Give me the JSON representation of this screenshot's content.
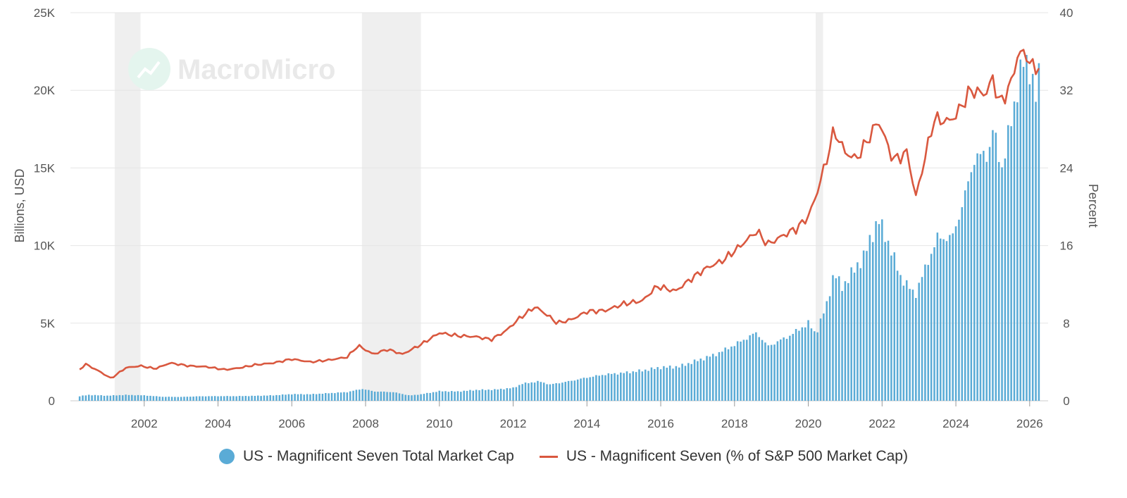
{
  "watermark": "MacroMicro",
  "colors": {
    "bar": "#5aabd6",
    "line": "#d9583f",
    "recession": "#efefef",
    "grid": "#e6e6e6",
    "axis_text": "#555555"
  },
  "legend": {
    "bar_label": "US - Magnificent Seven Total Market Cap",
    "line_label": "US - Magnificent Seven (% of S&P 500 Market Cap)"
  },
  "chart_data": {
    "type": "bar",
    "title": "",
    "x_ticks": [
      "2002",
      "2004",
      "2006",
      "2008",
      "2010",
      "2012",
      "2014",
      "2016",
      "2018",
      "2020",
      "2022",
      "2024",
      "2026"
    ],
    "x_range": [
      2000.0,
      2026.5
    ],
    "y_left": {
      "label": "Billions, USD",
      "ticks": [
        "0",
        "5K",
        "10K",
        "15K",
        "20K",
        "25K"
      ],
      "range": [
        0,
        25000
      ]
    },
    "y_right": {
      "label": "Percent",
      "ticks": [
        "0",
        "8",
        "16",
        "24",
        "32",
        "40"
      ],
      "range": [
        0,
        40
      ]
    },
    "recession_bands": [
      [
        2001.2,
        2001.9
      ],
      [
        2007.9,
        2009.5
      ],
      [
        2020.2,
        2020.4
      ]
    ],
    "grid": true,
    "legend_position": "bottom",
    "series": [
      {
        "name": "US - Magnificent Seven Total Market Cap",
        "type": "bar",
        "axis": "left",
        "points": [
          [
            2000.25,
            300
          ],
          [
            2000.5,
            380
          ],
          [
            2001.0,
            330
          ],
          [
            2001.5,
            380
          ],
          [
            2002.0,
            350
          ],
          [
            2002.5,
            260
          ],
          [
            2003.0,
            250
          ],
          [
            2003.5,
            290
          ],
          [
            2004.0,
            300
          ],
          [
            2004.5,
            300
          ],
          [
            2005.0,
            320
          ],
          [
            2005.5,
            350
          ],
          [
            2006.0,
            430
          ],
          [
            2006.5,
            420
          ],
          [
            2007.0,
            490
          ],
          [
            2007.5,
            560
          ],
          [
            2007.9,
            770
          ],
          [
            2008.25,
            600
          ],
          [
            2008.75,
            560
          ],
          [
            2009.2,
            340
          ],
          [
            2009.5,
            420
          ],
          [
            2010.0,
            620
          ],
          [
            2010.5,
            600
          ],
          [
            2011.0,
            700
          ],
          [
            2011.5,
            720
          ],
          [
            2012.0,
            830
          ],
          [
            2012.25,
            1100
          ],
          [
            2012.7,
            1250
          ],
          [
            2013.0,
            1050
          ],
          [
            2013.5,
            1250
          ],
          [
            2014.0,
            1500
          ],
          [
            2014.5,
            1700
          ],
          [
            2015.0,
            1800
          ],
          [
            2015.5,
            1950
          ],
          [
            2016.0,
            2150
          ],
          [
            2016.5,
            2200
          ],
          [
            2017.0,
            2600
          ],
          [
            2017.5,
            3000
          ],
          [
            2018.0,
            3600
          ],
          [
            2018.6,
            4400
          ],
          [
            2018.9,
            3500
          ],
          [
            2019.5,
            4200
          ],
          [
            2020.0,
            5000
          ],
          [
            2020.2,
            4300
          ],
          [
            2020.5,
            6200
          ],
          [
            2020.7,
            8300
          ],
          [
            2020.9,
            7300
          ],
          [
            2021.0,
            7600
          ],
          [
            2021.5,
            9300
          ],
          [
            2021.9,
            11700
          ],
          [
            2022.2,
            10000
          ],
          [
            2022.5,
            8000
          ],
          [
            2022.9,
            6800
          ],
          [
            2023.0,
            7500
          ],
          [
            2023.5,
            10500
          ],
          [
            2023.9,
            10500
          ],
          [
            2024.2,
            12800
          ],
          [
            2024.5,
            15600
          ],
          [
            2024.9,
            16000
          ],
          [
            2025.0,
            17500
          ],
          [
            2025.25,
            15000
          ],
          [
            2025.5,
            18000
          ],
          [
            2025.8,
            21800
          ],
          [
            2026.0,
            21500
          ],
          [
            2026.2,
            19200
          ],
          [
            2026.3,
            22300
          ]
        ]
      },
      {
        "name": "US - Magnificent Seven (% of S&P 500 Market Cap)",
        "type": "line",
        "axis": "right",
        "points": [
          [
            2000.25,
            3.2
          ],
          [
            2000.4,
            3.8
          ],
          [
            2000.8,
            3.0
          ],
          [
            2001.1,
            2.3
          ],
          [
            2001.5,
            3.4
          ],
          [
            2001.9,
            3.6
          ],
          [
            2002.3,
            3.3
          ],
          [
            2002.7,
            3.9
          ],
          [
            2003.2,
            3.6
          ],
          [
            2003.7,
            3.5
          ],
          [
            2004.2,
            3.2
          ],
          [
            2004.6,
            3.4
          ],
          [
            2005.0,
            3.7
          ],
          [
            2005.5,
            3.9
          ],
          [
            2006.0,
            4.3
          ],
          [
            2006.5,
            4.0
          ],
          [
            2007.0,
            4.2
          ],
          [
            2007.5,
            4.5
          ],
          [
            2007.8,
            5.7
          ],
          [
            2008.2,
            4.8
          ],
          [
            2008.6,
            5.3
          ],
          [
            2009.0,
            4.8
          ],
          [
            2009.5,
            5.8
          ],
          [
            2010.0,
            7.0
          ],
          [
            2010.5,
            6.7
          ],
          [
            2011.0,
            6.6
          ],
          [
            2011.4,
            6.3
          ],
          [
            2011.8,
            7.2
          ],
          [
            2012.2,
            8.6
          ],
          [
            2012.6,
            9.7
          ],
          [
            2012.9,
            8.9
          ],
          [
            2013.2,
            8.0
          ],
          [
            2013.6,
            8.4
          ],
          [
            2014.0,
            9.2
          ],
          [
            2014.5,
            9.3
          ],
          [
            2015.0,
            10.0
          ],
          [
            2015.5,
            10.3
          ],
          [
            2015.9,
            11.8
          ],
          [
            2016.4,
            11.3
          ],
          [
            2016.8,
            12.5
          ],
          [
            2017.2,
            13.6
          ],
          [
            2017.7,
            14.5
          ],
          [
            2018.2,
            16.1
          ],
          [
            2018.6,
            17.5
          ],
          [
            2018.9,
            16.1
          ],
          [
            2019.3,
            17.0
          ],
          [
            2019.7,
            17.8
          ],
          [
            2020.0,
            19.0
          ],
          [
            2020.2,
            21.0
          ],
          [
            2020.5,
            24.9
          ],
          [
            2020.7,
            27.9
          ],
          [
            2021.0,
            25.6
          ],
          [
            2021.3,
            24.9
          ],
          [
            2021.6,
            26.8
          ],
          [
            2021.9,
            28.9
          ],
          [
            2022.3,
            24.8
          ],
          [
            2022.7,
            25.6
          ],
          [
            2022.9,
            20.8
          ],
          [
            2023.2,
            25.6
          ],
          [
            2023.4,
            29.0
          ],
          [
            2023.8,
            28.8
          ],
          [
            2024.0,
            29.4
          ],
          [
            2024.4,
            32.0
          ],
          [
            2024.8,
            31.6
          ],
          [
            2025.0,
            33.2
          ],
          [
            2025.2,
            30.5
          ],
          [
            2025.5,
            32.8
          ],
          [
            2025.7,
            36.0
          ],
          [
            2025.95,
            35.5
          ],
          [
            2026.1,
            34.1
          ],
          [
            2026.3,
            34.8
          ]
        ]
      }
    ]
  }
}
